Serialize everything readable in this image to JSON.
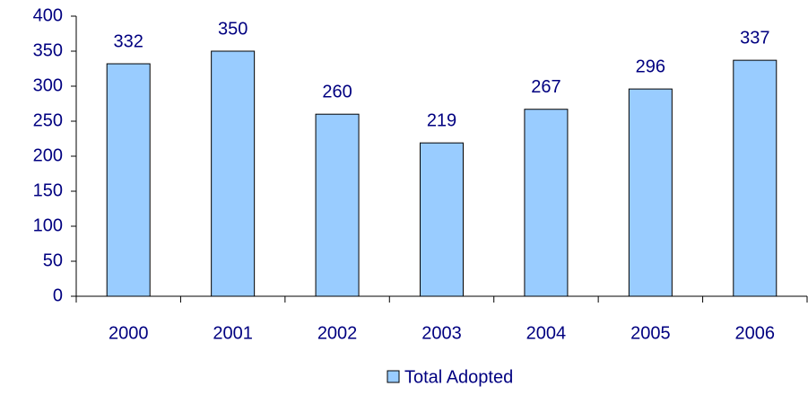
{
  "chart_data": {
    "type": "bar",
    "categories": [
      "2000",
      "2001",
      "2002",
      "2003",
      "2004",
      "2005",
      "2006"
    ],
    "series": [
      {
        "name": "Total Adopted",
        "color": "#99ccff",
        "values": [
          332,
          350,
          260,
          219,
          267,
          296,
          337
        ]
      }
    ],
    "ylim": [
      0,
      400
    ],
    "yticks": [
      0,
      50,
      100,
      150,
      200,
      250,
      300,
      350,
      400
    ],
    "grid": false,
    "legend": "bottom"
  }
}
